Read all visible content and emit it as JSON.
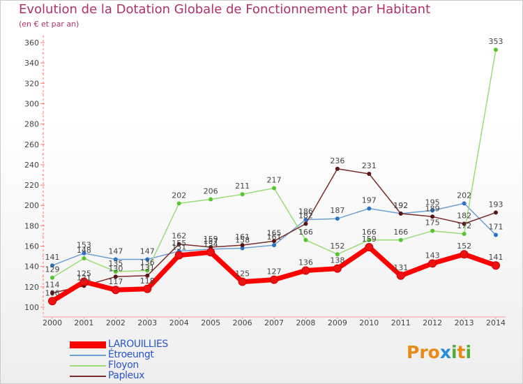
{
  "chart_data": {
    "type": "line",
    "title": "Evolution de la Dotation Globale de Fonctionnement par Habitant",
    "subtitle": "(en € et par an)",
    "xlabel": "",
    "ylabel": "",
    "categories": [
      "2000",
      "2001",
      "2002",
      "2003",
      "2004",
      "2005",
      "2006",
      "2007",
      "2008",
      "2009",
      "2010",
      "2011",
      "2012",
      "2013",
      "2014"
    ],
    "ylim": [
      100,
      360
    ],
    "yticks": [
      100,
      120,
      140,
      160,
      180,
      200,
      220,
      240,
      260,
      280,
      300,
      320,
      340,
      360
    ],
    "grid": false,
    "legend_position": "bottom-left",
    "series": [
      {
        "name": "LAROUILLIES",
        "color": "#ff0000",
        "marker_color": "#ee1111",
        "emphasis": true,
        "values": [
          106,
          125,
          117,
          118,
          151,
          154,
          125,
          127,
          136,
          138,
          159,
          131,
          143,
          152,
          141
        ],
        "labels": [
          "106",
          "125",
          "117",
          "118",
          "151",
          "154",
          "125",
          "127",
          "136",
          "138",
          "159",
          "131",
          "143",
          "152",
          "141"
        ]
      },
      {
        "name": "Étroeungt",
        "color": "#6e9fd2",
        "marker_color": "#2b73c4",
        "values": [
          141,
          153,
          147,
          147,
          155,
          157,
          158,
          161,
          186,
          187,
          197,
          192,
          195,
          202,
          171
        ],
        "labels": [
          "141",
          "153",
          "147",
          "147",
          "155",
          "157",
          "158",
          "161",
          "186",
          "187",
          "197",
          "192",
          "195",
          "202",
          "171"
        ]
      },
      {
        "name": "Floyon",
        "color": "#99dd77",
        "marker_color": "#58c42e",
        "values": [
          129,
          148,
          135,
          136,
          202,
          206,
          211,
          217,
          166,
          152,
          166,
          166,
          175,
          172,
          353
        ],
        "labels": [
          "129",
          "148",
          "135",
          "136",
          "202",
          "206",
          "211",
          "217",
          "166",
          "152",
          "166",
          "166",
          "175",
          "172",
          "353"
        ]
      },
      {
        "name": "Papleux",
        "color": "#7a2b2b",
        "marker_color": "#5a1414",
        "values": [
          114,
          121,
          130,
          131,
          162,
          159,
          161,
          165,
          182,
          236,
          231,
          192,
          189,
          182,
          193
        ],
        "labels": [
          "114",
          "121",
          "130",
          "131",
          "162",
          "159",
          "161",
          "165",
          "182",
          "236",
          "231",
          "192",
          "189",
          "182",
          "193"
        ]
      }
    ]
  },
  "legend": {
    "items": [
      {
        "label": "LAROUILLIES",
        "color": "#ff0000"
      },
      {
        "label": "Étroeungt",
        "color": "#6e9fd2"
      },
      {
        "label": "Floyon",
        "color": "#99dd77"
      },
      {
        "label": "Papleux",
        "color": "#7a2b2b"
      }
    ]
  },
  "branding": {
    "logo_parts": [
      "Pro",
      "x",
      "i",
      "t",
      "i"
    ]
  }
}
